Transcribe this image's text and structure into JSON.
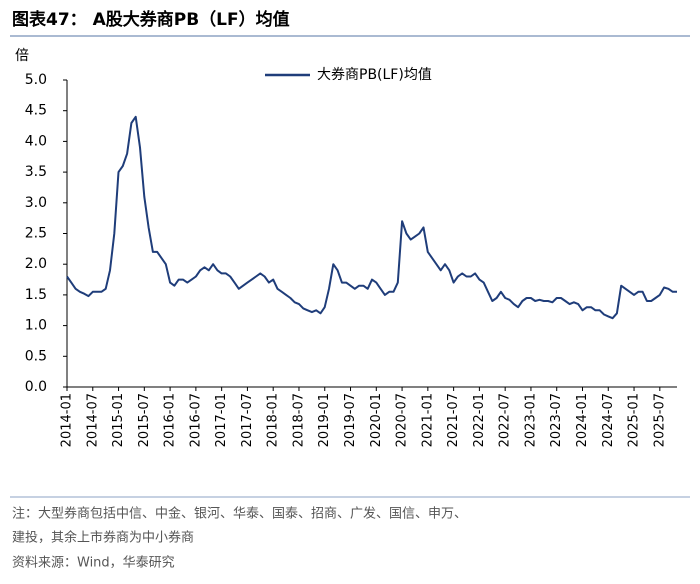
{
  "header": {
    "title": "图表47：  A股大券商PB（LF）均值"
  },
  "chart_data": {
    "type": "line",
    "y_label": "倍",
    "x": [
      "2014-01",
      "2014-02",
      "2014-03",
      "2014-04",
      "2014-05",
      "2014-06",
      "2014-07",
      "2014-08",
      "2014-09",
      "2014-10",
      "2014-11",
      "2014-12",
      "2015-01",
      "2015-02",
      "2015-03",
      "2015-04",
      "2015-05",
      "2015-06",
      "2015-07",
      "2015-08",
      "2015-09",
      "2015-10",
      "2015-11",
      "2015-12",
      "2016-01",
      "2016-02",
      "2016-03",
      "2016-04",
      "2016-05",
      "2016-06",
      "2016-07",
      "2016-08",
      "2016-09",
      "2016-10",
      "2016-11",
      "2016-12",
      "2017-01",
      "2017-02",
      "2017-03",
      "2017-04",
      "2017-05",
      "2017-06",
      "2017-07",
      "2017-08",
      "2017-09",
      "2017-10",
      "2017-11",
      "2017-12",
      "2018-01",
      "2018-02",
      "2018-03",
      "2018-04",
      "2018-05",
      "2018-06",
      "2018-07",
      "2018-08",
      "2018-09",
      "2018-10",
      "2018-11",
      "2018-12",
      "2019-01",
      "2019-02",
      "2019-03",
      "2019-04",
      "2019-05",
      "2019-06",
      "2019-07",
      "2019-08",
      "2019-09",
      "2019-10",
      "2019-11",
      "2019-12",
      "2020-01",
      "2020-02",
      "2020-03",
      "2020-04",
      "2020-05",
      "2020-06",
      "2020-07",
      "2020-08",
      "2020-09",
      "2020-10",
      "2020-11",
      "2020-12",
      "2021-01",
      "2021-02",
      "2021-03",
      "2021-04",
      "2021-05",
      "2021-06",
      "2021-07",
      "2021-08",
      "2021-09",
      "2021-10",
      "2021-11",
      "2021-12",
      "2022-01",
      "2022-02",
      "2022-03",
      "2022-04",
      "2022-05",
      "2022-06",
      "2022-07",
      "2022-08",
      "2022-09",
      "2022-10",
      "2022-11",
      "2022-12",
      "2023-01",
      "2023-02",
      "2023-03",
      "2023-04",
      "2023-05",
      "2023-06",
      "2023-07",
      "2023-08",
      "2023-09",
      "2023-10",
      "2023-11",
      "2023-12",
      "2024-01",
      "2024-02",
      "2024-03",
      "2024-04",
      "2024-05",
      "2024-06",
      "2024-07",
      "2024-08",
      "2024-09",
      "2024-10",
      "2024-11",
      "2024-12",
      "2025-01",
      "2025-02",
      "2025-03",
      "2025-04",
      "2025-05",
      "2025-06",
      "2025-07",
      "2025-08",
      "2025-09",
      "2025-10",
      "2025-11"
    ],
    "series": [
      {
        "name": "大券商PB(LF)均值",
        "color": "#1f3d7a",
        "values": [
          1.8,
          1.7,
          1.6,
          1.55,
          1.52,
          1.48,
          1.55,
          1.55,
          1.55,
          1.6,
          1.9,
          2.5,
          3.5,
          3.6,
          3.8,
          4.3,
          4.4,
          3.9,
          3.1,
          2.6,
          2.2,
          2.2,
          2.1,
          2.0,
          1.7,
          1.65,
          1.75,
          1.75,
          1.7,
          1.75,
          1.8,
          1.9,
          1.95,
          1.9,
          2.0,
          1.9,
          1.85,
          1.85,
          1.8,
          1.7,
          1.6,
          1.65,
          1.7,
          1.75,
          1.8,
          1.85,
          1.8,
          1.7,
          1.75,
          1.6,
          1.55,
          1.5,
          1.45,
          1.38,
          1.35,
          1.28,
          1.25,
          1.22,
          1.25,
          1.2,
          1.3,
          1.6,
          2.0,
          1.9,
          1.7,
          1.7,
          1.65,
          1.6,
          1.65,
          1.65,
          1.6,
          1.75,
          1.7,
          1.6,
          1.5,
          1.55,
          1.55,
          1.7,
          2.7,
          2.5,
          2.4,
          2.45,
          2.5,
          2.6,
          2.2,
          2.1,
          2.0,
          1.9,
          2.0,
          1.9,
          1.7,
          1.8,
          1.85,
          1.8,
          1.8,
          1.85,
          1.75,
          1.7,
          1.55,
          1.4,
          1.45,
          1.55,
          1.45,
          1.42,
          1.35,
          1.3,
          1.4,
          1.45,
          1.45,
          1.4,
          1.42,
          1.4,
          1.4,
          1.38,
          1.45,
          1.45,
          1.4,
          1.35,
          1.38,
          1.35,
          1.25,
          1.3,
          1.3,
          1.25,
          1.25,
          1.18,
          1.15,
          1.12,
          1.2,
          1.65,
          1.6,
          1.55,
          1.5,
          1.55,
          1.55,
          1.4,
          1.4,
          1.45,
          1.5,
          1.62,
          1.6,
          1.55,
          1.55
        ]
      }
    ],
    "xlim": [
      "2014-01",
      "2025-11"
    ],
    "xticks": [
      "2014-01",
      "2014-07",
      "2015-01",
      "2015-07",
      "2016-01",
      "2016-07",
      "2017-01",
      "2017-07",
      "2018-01",
      "2018-07",
      "2019-01",
      "2019-07",
      "2020-01",
      "2020-07",
      "2021-01",
      "2021-07",
      "2022-01",
      "2022-07",
      "2023-01",
      "2023-07",
      "2024-01",
      "2024-07",
      "2025-01",
      "2025-07"
    ],
    "ylim": [
      0,
      5
    ],
    "yticks": [
      {
        "value": 0,
        "label": "0.0"
      },
      {
        "value": 0.5,
        "label": "0.5"
      },
      {
        "value": 1,
        "label": "1.0"
      },
      {
        "value": 1.5,
        "label": "1.5"
      },
      {
        "value": 2,
        "label": "2.0"
      },
      {
        "value": 2.5,
        "label": "2.5"
      },
      {
        "value": 3,
        "label": "3.0"
      },
      {
        "value": 3.5,
        "label": "3.5"
      },
      {
        "value": 4,
        "label": "4.0"
      },
      {
        "value": 4.5,
        "label": "4.5"
      },
      {
        "value": 5,
        "label": "5.0"
      }
    ],
    "legend": "top"
  },
  "notes": [
    "注：大型券商包括中信、中金、银河、华泰、国泰、招商、广发、国信、申万、",
    "建投，其余上市券商为中小券商"
  ],
  "source": "资料来源：Wind，华泰研究"
}
